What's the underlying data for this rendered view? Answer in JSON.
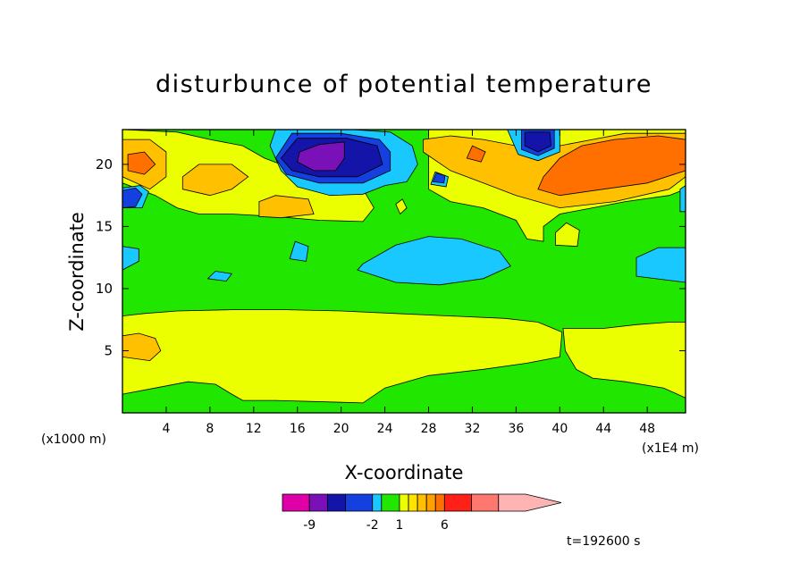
{
  "chart_data": {
    "type": "heatmap",
    "title": "disturbunce of potential temperature",
    "xlabel": "X-coordinate",
    "ylabel": "Z-coordinate",
    "x_scale_label": "(x1E4 m)",
    "y_scale_label": "(x1000 m)",
    "xlim": [
      0,
      51.5
    ],
    "ylim": [
      0,
      22.8
    ],
    "x_ticks": [
      4,
      8,
      12,
      16,
      20,
      24,
      28,
      32,
      36,
      40,
      44,
      48
    ],
    "y_ticks": [
      5,
      10,
      15,
      20
    ],
    "time_label": "t=192600 s",
    "colorbar": {
      "labels": [
        "-9",
        "-2",
        "1",
        "6"
      ],
      "levels": [
        -12,
        -9,
        -7,
        -5,
        -2,
        -1,
        1,
        2,
        3,
        4,
        5,
        6,
        9,
        12,
        15
      ],
      "colors": [
        "#e000a8",
        "#7a10b8",
        "#1414a8",
        "#1540e0",
        "#18c8ff",
        "#20e600",
        "#ecff00",
        "#ffe400",
        "#ffc000",
        "#ffa000",
        "#ff7000",
        "#ff2018",
        "#ff7870",
        "#ffb4b4"
      ]
    },
    "regions": [
      {
        "value": 0,
        "color": "#20e600",
        "points": [
          [
            0,
            0
          ],
          [
            51.5,
            0
          ],
          [
            51.5,
            22.8
          ],
          [
            0,
            22.8
          ]
        ]
      },
      {
        "value": 1.5,
        "color": "#ecff00",
        "points": [
          [
            0,
            1.5
          ],
          [
            3,
            2
          ],
          [
            6,
            2.5
          ],
          [
            8.5,
            2.3
          ],
          [
            10,
            1.5
          ],
          [
            11,
            1
          ],
          [
            14,
            1
          ],
          [
            22,
            0.8
          ],
          [
            24,
            2
          ],
          [
            28,
            3
          ],
          [
            33,
            3.5
          ],
          [
            37,
            4
          ],
          [
            40,
            4.5
          ],
          [
            40.2,
            6.5
          ],
          [
            38,
            7.3
          ],
          [
            35,
            7.6
          ],
          [
            30,
            7.8
          ],
          [
            25,
            8
          ],
          [
            20,
            8.2
          ],
          [
            15,
            8.3
          ],
          [
            10,
            8.3
          ],
          [
            5,
            8.2
          ],
          [
            2,
            8
          ],
          [
            0,
            7.8
          ]
        ]
      },
      {
        "value": 1.5,
        "color": "#ecff00",
        "points": [
          [
            40.3,
            6.8
          ],
          [
            44,
            6.8
          ],
          [
            47,
            7.1
          ],
          [
            50,
            7.3
          ],
          [
            51.5,
            7.3
          ],
          [
            51.5,
            1.2
          ],
          [
            49.5,
            2
          ],
          [
            46,
            2.5
          ],
          [
            43,
            2.8
          ],
          [
            41.5,
            3.5
          ],
          [
            40.5,
            5
          ]
        ]
      },
      {
        "value": 2.5,
        "color": "#ffc000",
        "points": [
          [
            0,
            4.5
          ],
          [
            2.5,
            4.2
          ],
          [
            3.5,
            5
          ],
          [
            3,
            6
          ],
          [
            1.5,
            6.4
          ],
          [
            0,
            6.2
          ]
        ]
      },
      {
        "value": 1.5,
        "color": "#ecff00",
        "points": [
          [
            0,
            18.5
          ],
          [
            3,
            17.5
          ],
          [
            5,
            16.5
          ],
          [
            7,
            16
          ],
          [
            10,
            16
          ],
          [
            14,
            15.8
          ],
          [
            18,
            15.5
          ],
          [
            22,
            15.4
          ],
          [
            23,
            16.5
          ],
          [
            22,
            18
          ],
          [
            20,
            18.8
          ],
          [
            16,
            19.5
          ],
          [
            13,
            20.5
          ],
          [
            11,
            21.5
          ],
          [
            8,
            22
          ],
          [
            5,
            22.6
          ],
          [
            0,
            22.8
          ]
        ]
      },
      {
        "value": 1.5,
        "color": "#ecff00",
        "points": [
          [
            28,
            18
          ],
          [
            30,
            17
          ],
          [
            33,
            16.5
          ],
          [
            36,
            15.5
          ],
          [
            37,
            14
          ],
          [
            38.5,
            13.8
          ],
          [
            38.5,
            15
          ],
          [
            40,
            16
          ],
          [
            43,
            16.5
          ],
          [
            46,
            17
          ],
          [
            50,
            17.5
          ],
          [
            51.5,
            18
          ],
          [
            51.5,
            22.8
          ],
          [
            28,
            22.8
          ]
        ]
      },
      {
        "value": 1.5,
        "color": "#ecff00",
        "points": [
          [
            25.4,
            16
          ],
          [
            26,
            16.5
          ],
          [
            25.6,
            17.2
          ],
          [
            25,
            16.8
          ]
        ]
      },
      {
        "value": 1.5,
        "color": "#ecff00",
        "points": [
          [
            39.6,
            13.5
          ],
          [
            41.6,
            13.4
          ],
          [
            41.8,
            14.7
          ],
          [
            40.6,
            15.3
          ],
          [
            39.6,
            14.5
          ]
        ]
      },
      {
        "value": 3,
        "color": "#ffc000",
        "points": [
          [
            0,
            19
          ],
          [
            2.5,
            18
          ],
          [
            4,
            19
          ],
          [
            4,
            21
          ],
          [
            2.5,
            22
          ],
          [
            0,
            22
          ]
        ]
      },
      {
        "value": 3,
        "color": "#ffc000",
        "points": [
          [
            5.5,
            18
          ],
          [
            8,
            17.5
          ],
          [
            10,
            18
          ],
          [
            11.5,
            19
          ],
          [
            10,
            20
          ],
          [
            7,
            20
          ],
          [
            5.5,
            19
          ]
        ]
      },
      {
        "value": 3,
        "color": "#ffc000",
        "points": [
          [
            12.5,
            15.8
          ],
          [
            14.5,
            15.7
          ],
          [
            17.5,
            16
          ],
          [
            17,
            17.2
          ],
          [
            14,
            17.5
          ],
          [
            12.5,
            17
          ]
        ]
      },
      {
        "value": 3,
        "color": "#ffc000",
        "points": [
          [
            27.5,
            21
          ],
          [
            30,
            19.5
          ],
          [
            33,
            18.5
          ],
          [
            36,
            17.5
          ],
          [
            40,
            16.5
          ],
          [
            45,
            17
          ],
          [
            50,
            18
          ],
          [
            51.5,
            19
          ],
          [
            51.5,
            22.5
          ],
          [
            46,
            22.5
          ],
          [
            43,
            22
          ],
          [
            40,
            21.5
          ],
          [
            36,
            21.5
          ],
          [
            33,
            22
          ],
          [
            30,
            22.3
          ],
          [
            27.5,
            22
          ]
        ]
      },
      {
        "value": 5,
        "color": "#ff7000",
        "points": [
          [
            0.5,
            19.5
          ],
          [
            2,
            19.2
          ],
          [
            3,
            20
          ],
          [
            2,
            21
          ],
          [
            0.5,
            20.8
          ]
        ]
      },
      {
        "value": 5,
        "color": "#ff7000",
        "points": [
          [
            38,
            18
          ],
          [
            40,
            17.5
          ],
          [
            44,
            18
          ],
          [
            48,
            18.5
          ],
          [
            51.5,
            19.5
          ],
          [
            51.5,
            22
          ],
          [
            49,
            22.3
          ],
          [
            45,
            22
          ],
          [
            42,
            21.5
          ],
          [
            40,
            20.5
          ],
          [
            38.5,
            19
          ]
        ]
      },
      {
        "value": 5,
        "color": "#ff7000",
        "points": [
          [
            31.5,
            20.5
          ],
          [
            32.8,
            20.2
          ],
          [
            33.2,
            21
          ],
          [
            32,
            21.5
          ]
        ]
      },
      {
        "value": -1.5,
        "color": "#18c8ff",
        "points": [
          [
            13.5,
            21.5
          ],
          [
            14.5,
            19.5
          ],
          [
            16,
            18.2
          ],
          [
            19,
            17.5
          ],
          [
            22,
            17.6
          ],
          [
            24,
            18.3
          ],
          [
            26,
            18.6
          ],
          [
            27,
            20
          ],
          [
            26.5,
            21.5
          ],
          [
            24.5,
            22.6
          ],
          [
            21,
            22.8
          ],
          [
            14,
            22.8
          ]
        ]
      },
      {
        "value": -1.5,
        "color": "#18c8ff",
        "points": [
          [
            35.2,
            22.8
          ],
          [
            36.2,
            20.8
          ],
          [
            38,
            20.3
          ],
          [
            40,
            21
          ],
          [
            40,
            22.8
          ]
        ]
      },
      {
        "value": -1.5,
        "color": "#18c8ff",
        "points": [
          [
            0,
            16.5
          ],
          [
            1.8,
            16.5
          ],
          [
            2.4,
            17.8
          ],
          [
            1.6,
            18.3
          ],
          [
            0,
            18.1
          ]
        ]
      },
      {
        "value": -1.5,
        "color": "#18c8ff",
        "points": [
          [
            0,
            11.5
          ],
          [
            1.5,
            12.2
          ],
          [
            1.5,
            13.2
          ],
          [
            0,
            13.4
          ]
        ]
      },
      {
        "value": -1.5,
        "color": "#18c8ff",
        "points": [
          [
            21.5,
            11.5
          ],
          [
            25,
            10.5
          ],
          [
            29,
            10.3
          ],
          [
            33,
            10.8
          ],
          [
            35.5,
            11.8
          ],
          [
            34.5,
            13
          ],
          [
            31,
            14
          ],
          [
            28,
            14.2
          ],
          [
            25,
            13.5
          ],
          [
            22,
            12
          ]
        ]
      },
      {
        "value": -1.5,
        "color": "#18c8ff",
        "points": [
          [
            47,
            11
          ],
          [
            51.5,
            10.5
          ],
          [
            51.5,
            13.3
          ],
          [
            49,
            13.3
          ],
          [
            47,
            12.5
          ]
        ]
      },
      {
        "value": -1.5,
        "color": "#18c8ff",
        "points": [
          [
            51,
            16.2
          ],
          [
            51.5,
            16.2
          ],
          [
            51.5,
            18.3
          ],
          [
            51,
            18
          ]
        ]
      },
      {
        "value": -1.5,
        "color": "#18c8ff",
        "points": [
          [
            15.3,
            12.4
          ],
          [
            16.8,
            12.2
          ],
          [
            17,
            13.4
          ],
          [
            15.8,
            13.8
          ]
        ]
      },
      {
        "value": -1.5,
        "color": "#18c8ff",
        "points": [
          [
            7.8,
            10.8
          ],
          [
            9.5,
            10.6
          ],
          [
            10,
            11.2
          ],
          [
            8.5,
            11.4
          ]
        ]
      },
      {
        "value": -1.5,
        "color": "#18c8ff",
        "points": [
          [
            28.2,
            18.4
          ],
          [
            29.6,
            18.2
          ],
          [
            29.8,
            19
          ],
          [
            28.6,
            19.4
          ]
        ]
      },
      {
        "value": -3.5,
        "color": "#1540e0",
        "points": [
          [
            14,
            20.5
          ],
          [
            15,
            19.2
          ],
          [
            18,
            18.5
          ],
          [
            22,
            18.5
          ],
          [
            24.5,
            19.5
          ],
          [
            24.5,
            21
          ],
          [
            23.5,
            22
          ],
          [
            20,
            22.5
          ],
          [
            15.5,
            22.5
          ]
        ]
      },
      {
        "value": -3.5,
        "color": "#1540e0",
        "points": [
          [
            0,
            16.5
          ],
          [
            1.2,
            16.6
          ],
          [
            1.8,
            17.6
          ],
          [
            1.2,
            18.1
          ],
          [
            0,
            17.9
          ]
        ]
      },
      {
        "value": -3.5,
        "color": "#1540e0",
        "points": [
          [
            28.4,
            18.6
          ],
          [
            29.4,
            18.5
          ],
          [
            29.5,
            19.1
          ],
          [
            28.7,
            19.3
          ]
        ]
      },
      {
        "value": -3.5,
        "color": "#1540e0",
        "points": [
          [
            36.5,
            21.2
          ],
          [
            38,
            20.7
          ],
          [
            39.5,
            21.3
          ],
          [
            39.5,
            22.8
          ],
          [
            36.5,
            22.8
          ]
        ]
      },
      {
        "value": -6,
        "color": "#1414a8",
        "points": [
          [
            14.5,
            20.5
          ],
          [
            15.5,
            19.5
          ],
          [
            18,
            19
          ],
          [
            21.5,
            19
          ],
          [
            23.8,
            20
          ],
          [
            23.3,
            21.5
          ],
          [
            20.5,
            22.1
          ],
          [
            16,
            22.1
          ]
        ]
      },
      {
        "value": -6,
        "color": "#1414a8",
        "points": [
          [
            36.8,
            21.5
          ],
          [
            38,
            21
          ],
          [
            39.2,
            21.5
          ],
          [
            39.1,
            22.6
          ],
          [
            36.8,
            22.6
          ]
        ]
      },
      {
        "value": -8,
        "color": "#7a10b8",
        "points": [
          [
            16,
            20.2
          ],
          [
            17.5,
            19.5
          ],
          [
            19.5,
            19.5
          ],
          [
            20.3,
            20.5
          ],
          [
            20.3,
            21.8
          ],
          [
            18,
            21.6
          ],
          [
            16.2,
            21
          ]
        ]
      }
    ]
  }
}
